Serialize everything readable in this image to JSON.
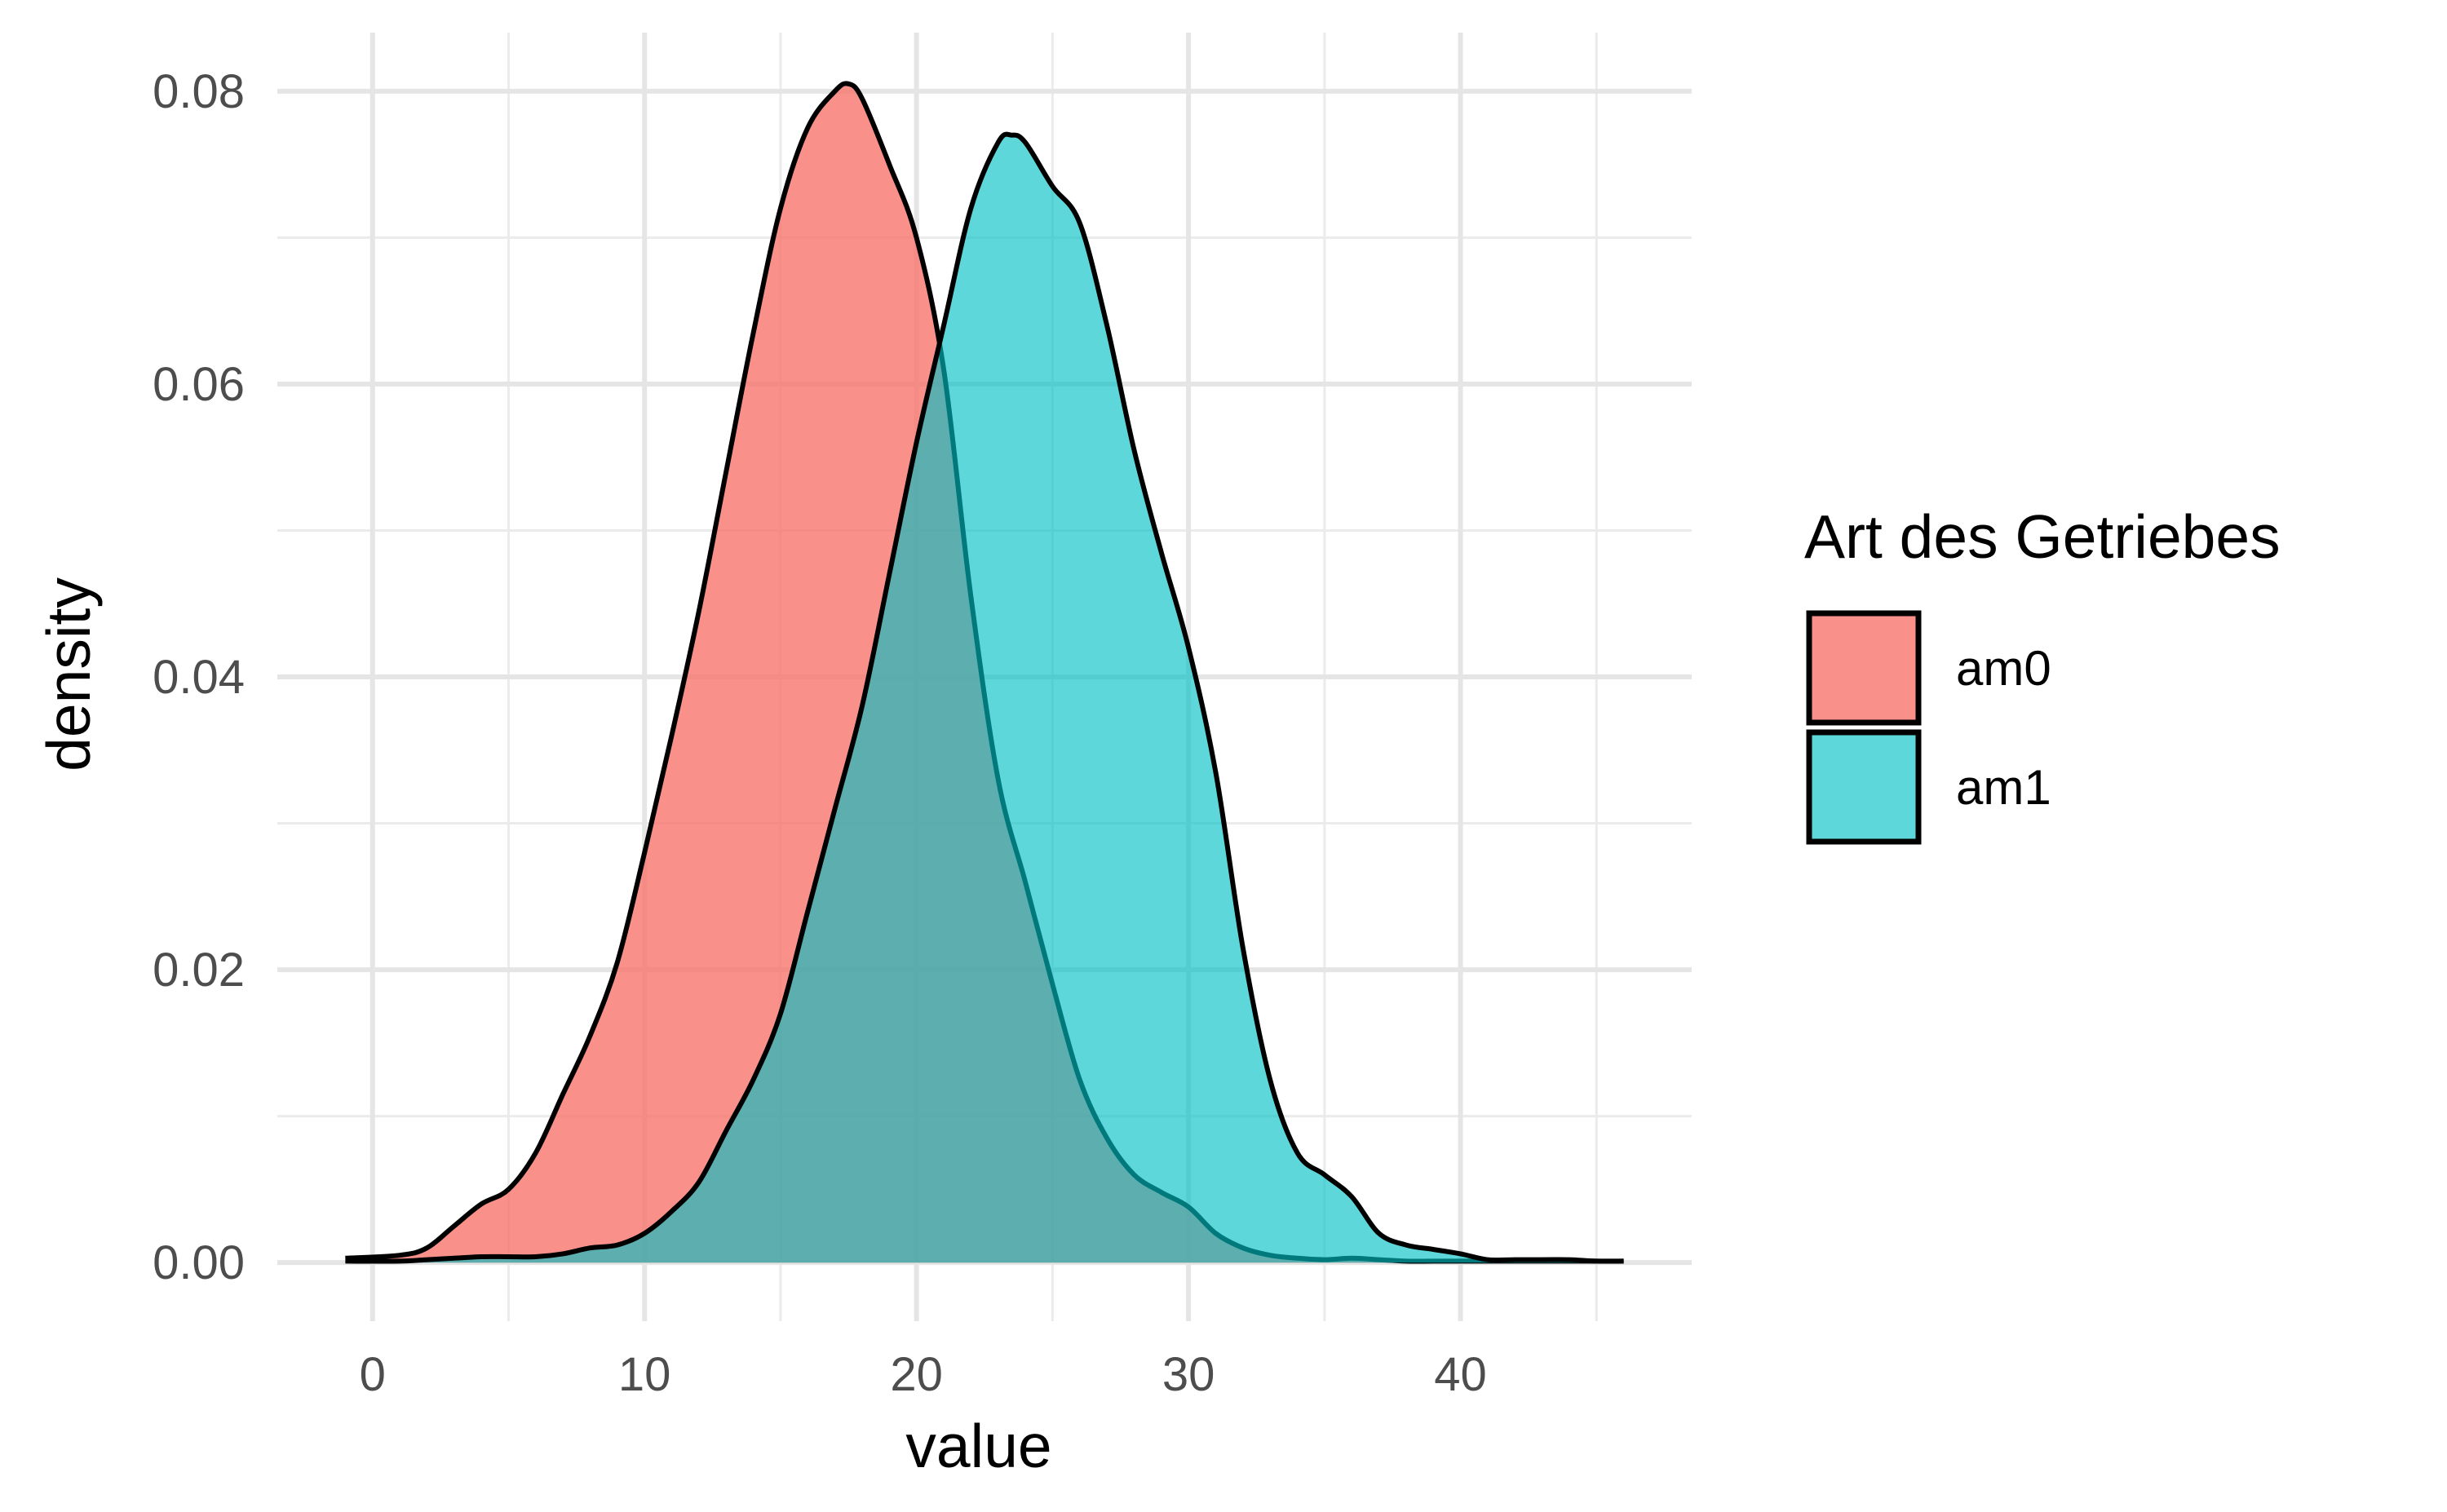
{
  "chart_data": {
    "type": "area",
    "subtype": "density",
    "title": "",
    "xlabel": "value",
    "ylabel": "density",
    "xlim": [
      -3.5,
      48.5
    ],
    "ylim": [
      -0.004,
      0.084
    ],
    "x_ticks": [
      0,
      10,
      20,
      30,
      40
    ],
    "x_tick_labels": [
      "0",
      "10",
      "20",
      "30",
      "40"
    ],
    "y_ticks": [
      0.0,
      0.02,
      0.04,
      0.06,
      0.08
    ],
    "y_tick_labels": [
      "0.00",
      "0.02",
      "0.04",
      "0.06",
      "0.08"
    ],
    "grid": true,
    "legend": {
      "title": "Art des Getriebes",
      "position": "right"
    },
    "series": [
      {
        "name": "am0",
        "color": "#F8766D",
        "opacity": 0.8,
        "x": [
          -1,
          1,
          2,
          3,
          4,
          5,
          6,
          7,
          8,
          9,
          10,
          11,
          12,
          13,
          14,
          15,
          16,
          17,
          17.5,
          18,
          19,
          20,
          21,
          22,
          23,
          24,
          25,
          26,
          27,
          28,
          29,
          30,
          31,
          32,
          33,
          34,
          35,
          36,
          37,
          38,
          39,
          40,
          41,
          42,
          43,
          44,
          45,
          46
        ],
        "y": [
          0.0003,
          0.0005,
          0.001,
          0.0025,
          0.004,
          0.005,
          0.0075,
          0.0115,
          0.0155,
          0.0205,
          0.028,
          0.036,
          0.0445,
          0.054,
          0.0635,
          0.072,
          0.0775,
          0.08,
          0.0805,
          0.0795,
          0.075,
          0.07,
          0.061,
          0.0455,
          0.033,
          0.026,
          0.019,
          0.0125,
          0.0085,
          0.006,
          0.0048,
          0.0038,
          0.002,
          0.001,
          0.0005,
          0.0003,
          0.0002,
          0.0003,
          0.0002,
          0.0001,
          0.0001,
          0.0001,
          0.0001,
          0.0001,
          0.0001,
          0.0001,
          0.0001,
          0.0001
        ]
      },
      {
        "name": "am1",
        "color": "#00BFC4",
        "opacity": 0.63,
        "x": [
          -1,
          1,
          2,
          3,
          4,
          5,
          6,
          7,
          8,
          9,
          10,
          11,
          12,
          13,
          14,
          15,
          16,
          17,
          18,
          19,
          20,
          21,
          22,
          23,
          23.5,
          24,
          25,
          26,
          27,
          28,
          29,
          30,
          31,
          32,
          33,
          34,
          35,
          36,
          37,
          38,
          39,
          40,
          41,
          42,
          43,
          44,
          45,
          46
        ],
        "y": [
          0.0001,
          0.0001,
          0.0002,
          0.0003,
          0.0004,
          0.0004,
          0.0004,
          0.0006,
          0.001,
          0.0012,
          0.002,
          0.0035,
          0.0055,
          0.009,
          0.0125,
          0.017,
          0.024,
          0.031,
          0.038,
          0.047,
          0.056,
          0.064,
          0.072,
          0.0765,
          0.077,
          0.0765,
          0.0735,
          0.071,
          0.064,
          0.0555,
          0.0485,
          0.042,
          0.0335,
          0.0215,
          0.0125,
          0.0075,
          0.006,
          0.0045,
          0.002,
          0.0012,
          0.0009,
          0.0006,
          0.0002,
          0.0002,
          0.0002,
          0.0002,
          0.0001,
          0.0001
        ]
      }
    ]
  }
}
